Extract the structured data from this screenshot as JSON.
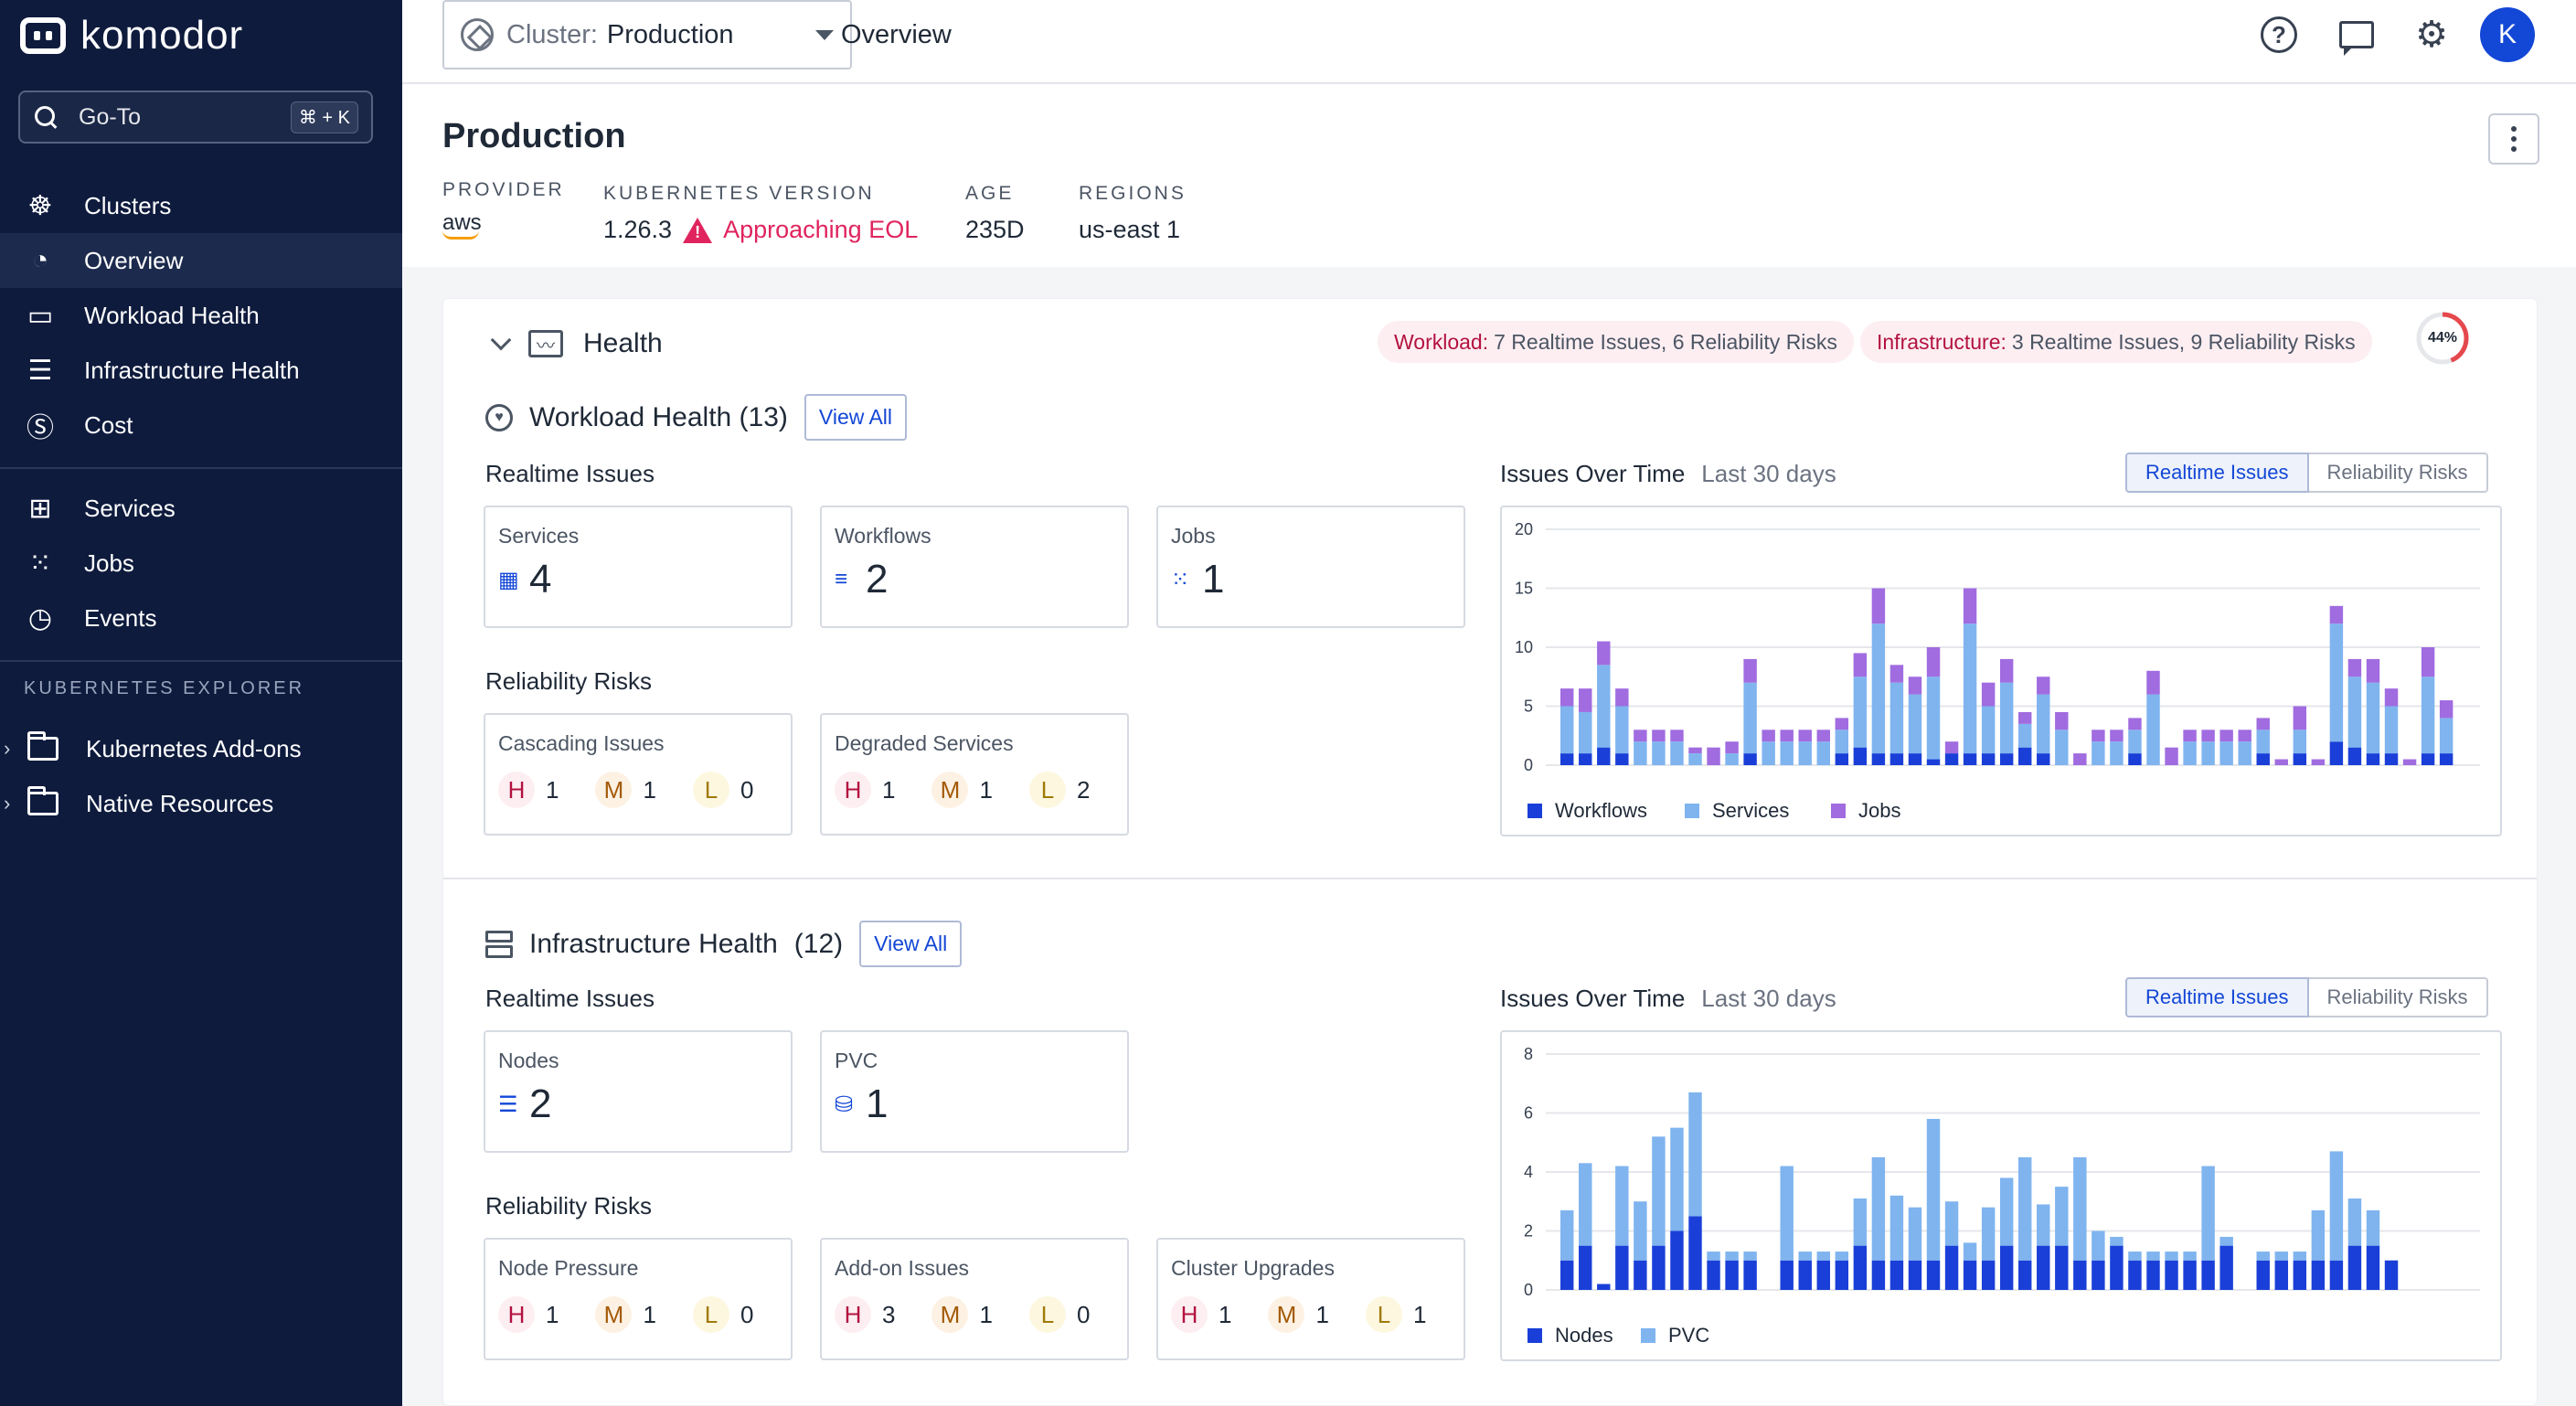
{
  "app": {
    "name": "komodor"
  },
  "sidebar": {
    "goto_label": "Go-To",
    "goto_shortcut": "⌘ + K",
    "items": [
      {
        "label": "Clusters",
        "icon": "helm-wheel-icon"
      },
      {
        "label": "Overview",
        "icon": "gauge-icon",
        "active": true
      },
      {
        "label": "Workload Health",
        "icon": "monitor-heart-icon"
      },
      {
        "label": "Infrastructure Health",
        "icon": "server-check-icon"
      },
      {
        "label": "Cost",
        "icon": "dollar-circle-icon"
      }
    ],
    "items2": [
      {
        "label": "Services",
        "icon": "grid-icon"
      },
      {
        "label": "Jobs",
        "icon": "dots-grid-icon"
      },
      {
        "label": "Events",
        "icon": "clock-icon"
      }
    ],
    "explorer_title": "KUBERNETES EXPLORER",
    "explorer_items": [
      {
        "label": "Kubernetes Add-ons"
      },
      {
        "label": "Native Resources"
      }
    ]
  },
  "topbar": {
    "cluster_label": "Cluster:",
    "cluster_value": "Production",
    "breadcrumb": "Overview",
    "avatar_initial": "K"
  },
  "header": {
    "title": "Production",
    "provider_label": "PROVIDER",
    "provider_value": "aws",
    "k8s_label": "KUBERNETES VERSION",
    "k8s_value": "1.26.3",
    "k8s_warning": "Approaching EOL",
    "age_label": "AGE",
    "age_value": "235D",
    "regions_label": "REGIONS",
    "regions_value": "us-east 1"
  },
  "health": {
    "title": "Health",
    "workload_pill_key": "Workload:",
    "workload_pill_value": "7 Realtime Issues, 6 Reliability Risks",
    "infra_pill_key": "Infrastructure:",
    "infra_pill_value": "3 Realtime Issues, 9 Reliability Risks",
    "score_label": "44%",
    "score_fraction": 0.44,
    "colors": {
      "dark": "#1a3fd8",
      "light": "#7fb4ef",
      "purple": "#a06ce0",
      "ring": "#e5484d"
    }
  },
  "workload": {
    "title": "Workload Health (13)",
    "view_all": "View All",
    "realtime_title": "Realtime Issues",
    "tiles": [
      {
        "label": "Services",
        "value": "4",
        "icon": "service-icon"
      },
      {
        "label": "Workflows",
        "value": "2",
        "icon": "workflow-icon"
      },
      {
        "label": "Jobs",
        "value": "1",
        "icon": "jobs-icon"
      }
    ],
    "risks_title": "Reliability Risks",
    "risks": [
      {
        "label": "Cascading Issues",
        "h": "1",
        "m": "1",
        "l": "0"
      },
      {
        "label": "Degraded Services",
        "h": "1",
        "m": "1",
        "l": "2"
      }
    ],
    "chart_title": "Issues Over Time",
    "chart_range": "Last 30 days",
    "toggle_on": "Realtime Issues",
    "toggle_off": "Reliability Risks"
  },
  "infra": {
    "title": "Infrastructure Health",
    "count": "(12)",
    "view_all": "View All",
    "realtime_title": "Realtime Issues",
    "tiles": [
      {
        "label": "Nodes",
        "value": "2",
        "icon": "nodes-icon"
      },
      {
        "label": "PVC",
        "value": "1",
        "icon": "database-icon"
      }
    ],
    "risks_title": "Reliability Risks",
    "risks": [
      {
        "label": "Node Pressure",
        "h": "1",
        "m": "1",
        "l": "0"
      },
      {
        "label": "Add-on Issues",
        "h": "3",
        "m": "1",
        "l": "0"
      },
      {
        "label": "Cluster Upgrades",
        "h": "1",
        "m": "1",
        "l": "1"
      }
    ],
    "chart_title": "Issues Over Time",
    "chart_range": "Last 30 days",
    "toggle_on": "Realtime Issues",
    "toggle_off": "Reliability Risks"
  },
  "chart_data": [
    {
      "type": "bar",
      "stacked": true,
      "title": "Issues Over Time",
      "ylim": [
        0,
        20
      ],
      "yticks": [
        0,
        5,
        10,
        15,
        20
      ],
      "grid": true,
      "legend_position": "bottom-left",
      "series": [
        {
          "name": "Workflows",
          "color": "#1a3fd8",
          "values": [
            1,
            1,
            1.5,
            1,
            0,
            0,
            0,
            0,
            0,
            0,
            1,
            0,
            0,
            0,
            0,
            1,
            1.5,
            1,
            1,
            1,
            0.5,
            1,
            1,
            1,
            1,
            1.5,
            1,
            0,
            0,
            0,
            0,
            1,
            0,
            0,
            0,
            0,
            0,
            0,
            1,
            0,
            1,
            0,
            2,
            1.5,
            1,
            1,
            0,
            1,
            1,
            0
          ]
        },
        {
          "name": "Services",
          "color": "#7fb4ef",
          "values": [
            4,
            3.5,
            7,
            4,
            2,
            2,
            2,
            1,
            0,
            1,
            6,
            2,
            2,
            2,
            2,
            2,
            6,
            11,
            6,
            5,
            7,
            0,
            11,
            4,
            6,
            2,
            5,
            3,
            0,
            2,
            2,
            2,
            6,
            0,
            2,
            2,
            2,
            2,
            2,
            0,
            2,
            0,
            10,
            6,
            6,
            4,
            0,
            6.5,
            3,
            0
          ]
        },
        {
          "name": "Jobs",
          "color": "#a06ce0",
          "values": [
            1.5,
            2,
            2,
            1.5,
            1,
            1,
            1,
            0.5,
            1.5,
            1,
            2,
            1,
            1,
            1,
            1,
            1,
            2,
            3,
            1.5,
            1.5,
            2.5,
            1,
            3,
            2,
            2,
            1,
            1.5,
            1.5,
            1,
            1,
            1,
            1,
            2,
            1.5,
            1,
            1,
            1,
            1,
            1,
            0.5,
            2,
            0.5,
            1.5,
            1.5,
            2,
            1.5,
            0.5,
            2.5,
            1.5,
            0
          ]
        }
      ]
    },
    {
      "type": "bar",
      "stacked": true,
      "title": "Issues Over Time",
      "ylim": [
        0,
        8
      ],
      "yticks": [
        0,
        2,
        4,
        6,
        8
      ],
      "grid": true,
      "legend_position": "bottom-left",
      "series": [
        {
          "name": "Nodes",
          "color": "#1a3fd8",
          "values": [
            1,
            1.5,
            0.2,
            1.5,
            1,
            1.5,
            2,
            2.5,
            1,
            1,
            1,
            0,
            1,
            1,
            1,
            1,
            1.5,
            1,
            1,
            1,
            1,
            1.5,
            1,
            1,
            1.5,
            1,
            1.5,
            1.5,
            1,
            1,
            1.5,
            1,
            1,
            1,
            1,
            1,
            1.5,
            0,
            1,
            1,
            1,
            1,
            1,
            1.5,
            1.5,
            1,
            0,
            0,
            0,
            0
          ]
        },
        {
          "name": "PVC",
          "color": "#7fb4ef",
          "values": [
            1.7,
            2.8,
            0,
            2.7,
            2,
            3.7,
            3.5,
            4.2,
            0.3,
            0.3,
            0.3,
            0,
            3.2,
            0.3,
            0.3,
            0.3,
            1.6,
            3.5,
            2.2,
            1.8,
            4.8,
            1.5,
            0.6,
            1.8,
            2.3,
            3.5,
            1.4,
            2,
            3.5,
            1,
            0.3,
            0.3,
            0.3,
            0.3,
            0.3,
            3.2,
            0.3,
            0,
            0.3,
            0.3,
            0.3,
            1.7,
            3.7,
            1.6,
            1.2,
            0,
            0,
            0,
            0,
            0
          ]
        }
      ]
    }
  ]
}
